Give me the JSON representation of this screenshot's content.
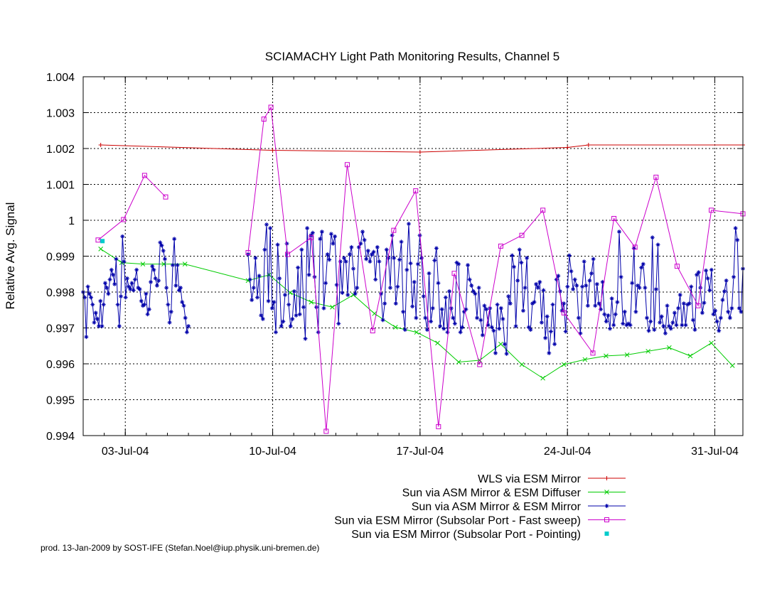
{
  "chart_data": {
    "type": "line",
    "title": "SCIAMACHY Light Path Monitoring Results, Channel 5",
    "xlabel": "",
    "ylabel": "Relative Avg. Signal",
    "ylim": [
      0.994,
      1.004
    ],
    "xlim": [
      "2004-07-01T00:00",
      "2004-08-01T08:00"
    ],
    "y_ticks": [
      "0.994",
      "0.995",
      "0.996",
      "0.997",
      "0.998",
      "0.999",
      "1",
      "1.001",
      "1.002",
      "1.003",
      "1.004"
    ],
    "x_ticks": [
      {
        "date": "2004-07-03",
        "label": "03-Jul-04"
      },
      {
        "date": "2004-07-10",
        "label": "10-Jul-04"
      },
      {
        "date": "2004-07-17",
        "label": "17-Jul-04"
      },
      {
        "date": "2004-07-24",
        "label": "24-Jul-04"
      },
      {
        "date": "2004-07-31",
        "label": "31-Jul-04"
      }
    ],
    "grid": true,
    "legend_position": "bottom-right",
    "series": [
      {
        "name": "WLS via ESM Mirror",
        "color": "#cc0000",
        "marker": "plus",
        "x": [
          "2004-07-01T20:00",
          "2004-07-10T00:00",
          "2004-07-17T00:00",
          "2004-07-24T00:00",
          "2004-07-25T00:00",
          "2004-08-01T08:00"
        ],
        "y": [
          1.0021,
          1.00195,
          1.0019,
          1.00203,
          1.0021,
          1.0021
        ]
      },
      {
        "name": "Sun via ASM Mirror & ESM Diffuser",
        "color": "#00cc00",
        "marker": "x",
        "x": [
          "2004-07-01T20:00",
          "2004-07-02T20:00",
          "2004-07-03T20:00",
          "2004-07-04T20:00",
          "2004-07-05T20:00",
          "2004-07-08T20:00",
          "2004-07-09T20:00",
          "2004-07-10T20:00",
          "2004-07-11T20:00",
          "2004-07-12T20:00",
          "2004-07-13T20:00",
          "2004-07-14T20:00",
          "2004-07-15T20:00",
          "2004-07-16T20:00",
          "2004-07-17T20:00",
          "2004-07-18T20:00",
          "2004-07-19T20:00",
          "2004-07-20T20:00",
          "2004-07-21T20:00",
          "2004-07-22T20:00",
          "2004-07-23T20:00",
          "2004-07-24T20:00",
          "2004-07-25T20:00",
          "2004-07-26T20:00",
          "2004-07-27T20:00",
          "2004-07-28T20:00",
          "2004-07-29T20:00",
          "2004-07-30T20:00",
          "2004-07-31T20:00"
        ],
        "y": [
          0.9992,
          0.99882,
          0.99878,
          0.99878,
          0.99878,
          0.99832,
          0.99848,
          0.99798,
          0.99772,
          0.99758,
          0.99792,
          0.9974,
          0.99702,
          0.99688,
          0.99658,
          0.99605,
          0.9961,
          0.99655,
          0.99598,
          0.9956,
          0.99598,
          0.99612,
          0.99622,
          0.99625,
          0.99635,
          0.99645,
          0.99622,
          0.99658,
          0.99595
        ]
      },
      {
        "name": "Sun via ASM Mirror & ESM Mirror",
        "color": "#0000aa",
        "marker": "star",
        "segments": [
          {
            "x_start": "2004-07-01T00:00",
            "x_end": "2004-07-06T00:00",
            "y": [
              0.998,
              0.99785,
              0.99675,
              0.99815,
              0.99795,
              0.99785,
              0.99765,
              0.99715,
              0.99742,
              0.99725,
              0.99705,
              0.99775,
              0.99705,
              0.99765,
              0.99825,
              0.99812,
              0.99795,
              0.99835,
              0.99862,
              0.99848,
              0.99822,
              0.99892,
              0.99765,
              0.99705,
              0.99788,
              0.99955,
              0.99885,
              0.99785,
              0.99838,
              0.99815,
              0.99808,
              0.99825,
              0.99805,
              0.99835,
              0.99862,
              0.99812,
              0.99808,
              0.99775,
              0.99762,
              0.99765,
              0.99795,
              0.99738,
              0.99752,
              0.99828,
              0.99872,
              0.99862,
              0.99838,
              0.99818,
              0.99832,
              0.99938,
              0.9993,
              0.99915,
              0.99892,
              0.99812,
              0.99765,
              0.99715,
              0.99745,
              0.99875,
              0.99948,
              0.99818,
              0.99875,
              0.99805,
              0.99812,
              0.99772,
              0.99762,
              0.99728,
              0.99688,
              0.99705
            ]
          },
          {
            "x_start": "2004-07-08T20:00",
            "x_end": "2004-08-01T08:00",
            "y": [
              0.99905,
              0.99835,
              0.99778,
              0.99812,
              0.99895,
              0.99785,
              0.99845,
              0.99735,
              0.99725,
              0.99918,
              0.99988,
              0.99775,
              0.99978,
              0.99755,
              0.99772,
              0.99688,
              0.99932,
              0.99838,
              0.99705,
              0.99718,
              0.99792,
              0.99935,
              0.99765,
              0.99705,
              0.99725,
              0.99802,
              0.99735,
              0.99868,
              0.99738,
              0.99918,
              0.99758,
              0.9967,
              0.99978,
              0.99848,
              0.99958,
              0.99965,
              0.99842,
              0.99758,
              0.99688,
              0.99948,
              0.99968,
              0.99755,
              0.99825,
              0.99905,
              0.9989,
              0.99962,
              0.99935,
              0.99955,
              0.9982,
              0.99712,
              0.99885,
              0.99798,
              0.99895,
              0.99885,
              0.99792,
              0.99905,
              0.99925,
              0.99865,
              0.99795,
              0.99812,
              0.99925,
              0.99935,
              0.99968,
              0.99945,
              0.99892,
              0.99915,
              0.99885,
              0.99905,
              0.99912,
              0.99835,
              0.99925,
              0.99885,
              0.99795,
              0.99722,
              0.99768,
              0.99918,
              0.99895,
              0.99812,
              0.99958,
              0.99895,
              0.99768,
              0.99815,
              0.9989,
              0.9994,
              0.99745,
              0.99695,
              0.99862,
              0.9999,
              0.9988,
              0.9976,
              0.99828,
              0.99728,
              0.99878,
              0.99958,
              0.99895,
              0.99788,
              0.99728,
              0.99695,
              0.99852,
              0.99718,
              0.99755,
              0.99888,
              0.99922,
              0.99825,
              0.99705,
              0.99752,
              0.99698,
              0.99785,
              0.99688,
              0.99802,
              0.99755,
              0.99728,
              0.99712,
              0.99882,
              0.99878,
              0.99688,
              0.99702,
              0.99745,
              0.99752,
              0.99875,
              0.99835,
              0.99818,
              0.99802,
              0.99795,
              0.99728,
              0.99812,
              0.99722,
              0.9968,
              0.99762,
              0.99752,
              0.99708,
              0.99755,
              0.99702,
              0.99692,
              0.9963,
              0.99765,
              0.99698,
              0.99755,
              0.99725,
              0.99655,
              0.99628,
              0.99788,
              0.99768,
              0.99902,
              0.9987,
              0.99705,
              0.99832,
              0.99918,
              0.99882,
              0.99748,
              0.99812,
              0.99895,
              0.99702,
              0.99695,
              0.99768,
              0.99772,
              0.99822,
              0.99812,
              0.99828,
              0.99715,
              0.99805,
              0.99672,
              0.99732,
              0.9963,
              0.9969,
              0.99765,
              0.99655,
              0.99835,
              0.99845,
              0.99802,
              0.99748,
              0.99768,
              0.9969,
              0.99815,
              0.99902,
              0.99858,
              0.99808,
              0.99835,
              0.99818,
              0.99728,
              0.99685,
              0.99815,
              0.99885,
              0.99818,
              0.99762,
              0.99832,
              0.99852,
              0.99892,
              0.99762,
              0.99822,
              0.99768,
              0.99752,
              0.99828,
              0.99738,
              0.99718,
              0.99735,
              0.99698,
              0.99782,
              0.99708,
              0.99738,
              0.99772,
              0.99968,
              0.99842,
              0.99712,
              0.99745,
              0.99708,
              0.99712,
              0.99708,
              0.99825,
              0.99922,
              0.99745,
              0.99818,
              0.99812,
              0.99868,
              0.99878,
              0.99812,
              0.99728,
              0.99692,
              0.99718,
              0.99952,
              0.99695,
              0.99808,
              0.99932,
              0.99715,
              0.99732,
              0.99705,
              0.99685,
              0.99762,
              0.99705,
              0.99698,
              0.99715,
              0.99742,
              0.99708,
              0.99755,
              0.99792,
              0.99708,
              0.99768,
              0.99708,
              0.99765,
              0.99768,
              0.99815,
              0.99722,
              0.99695,
              0.99848,
              0.99855,
              0.99812,
              0.99742,
              0.9977,
              0.9986,
              0.99838,
              0.99805,
              0.99862,
              0.99738,
              0.99748,
              0.99718,
              0.99692,
              0.99728,
              0.99778,
              0.99802,
              0.99832,
              0.99745,
              0.99728,
              0.99755,
              0.99842,
              0.99978,
              0.99945,
              0.99755,
              0.99745,
              0.99865
            ]
          }
        ]
      },
      {
        "name": "Sun via ESM Mirror (Subsolar Port - Fast sweep)",
        "color": "#cc00cc",
        "marker": "square",
        "segments": [
          {
            "x": [
              "2004-07-01T17:00",
              "2004-07-02T22:00",
              "2004-07-03T22:00",
              "2004-07-04T22:00"
            ],
            "y": [
              0.99945,
              1.00002,
              1.00125,
              1.00065
            ]
          },
          {
            "x": [
              "2004-07-08T20:00",
              "2004-07-09T14:00",
              "2004-07-09T22:00",
              "2004-07-10T17:00",
              "2004-07-11T20:00",
              "2004-07-12T13:00",
              "2004-07-13T13:00",
              "2004-07-14T18:00",
              "2004-07-15T18:00",
              "2004-07-16T19:00",
              "2004-07-17T21:00",
              "2004-07-18T15:00",
              "2004-07-19T20:00",
              "2004-07-20T20:00",
              "2004-07-21T20:00",
              "2004-07-22T20:00",
              "2004-07-23T20:00",
              "2004-07-25T05:00",
              "2004-07-26T05:00",
              "2004-07-27T05:00",
              "2004-07-28T05:00",
              "2004-07-29T05:00",
              "2004-07-30T05:00",
              "2004-07-30T20:00",
              "2004-08-01T08:00"
            ],
            "y": [
              0.9991,
              1.00282,
              1.00315,
              0.99905,
              0.99952,
              0.99412,
              1.00155,
              0.99692,
              0.99972,
              1.00082,
              0.99425,
              0.99852,
              0.99598,
              0.99928,
              0.99958,
              1.00028,
              0.99742,
              0.9963,
              1.00005,
              0.99925,
              1.0012,
              0.99872,
              0.99762,
              1.00028,
              1.00018
            ]
          }
        ]
      },
      {
        "name": "Sun via ESM Mirror (Subsolar Port - Pointing)",
        "color": "#00cccc",
        "marker": "square-filled",
        "x": [
          "2004-07-01T22:00"
        ],
        "y": [
          0.99942
        ]
      }
    ]
  },
  "footer": "prod. 13-Jan-2009 by SOST-IFE (Stefan.Noel@iup.physik.uni-bremen.de)"
}
